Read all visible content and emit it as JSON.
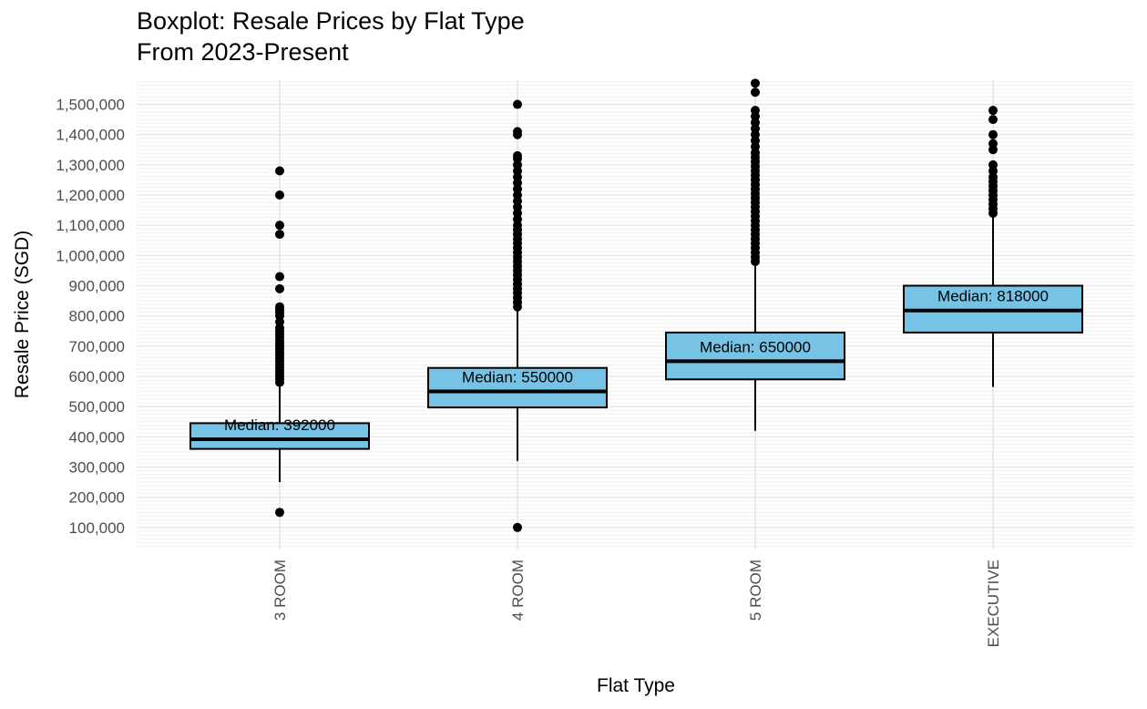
{
  "chart_data": {
    "type": "box",
    "title": "Boxplot: Resale Prices by Flat Type",
    "subtitle": "From 2023-Present",
    "xlabel": "Flat Type",
    "ylabel": "Resale Price (SGD)",
    "ylim": [
      30000,
      1580000
    ],
    "grid": "on",
    "box_fill": "#77C3E6",
    "yticks": [
      {
        "value": 100000,
        "label": "100,000"
      },
      {
        "value": 200000,
        "label": "200,000"
      },
      {
        "value": 300000,
        "label": "300,000"
      },
      {
        "value": 400000,
        "label": "400,000"
      },
      {
        "value": 500000,
        "label": "500,000"
      },
      {
        "value": 600000,
        "label": "600,000"
      },
      {
        "value": 700000,
        "label": "700,000"
      },
      {
        "value": 800000,
        "label": "800,000"
      },
      {
        "value": 900000,
        "label": "900,000"
      },
      {
        "value": 1000000,
        "label": "1,000,000"
      },
      {
        "value": 1100000,
        "label": "1,100,000"
      },
      {
        "value": 1200000,
        "label": "1,200,000"
      },
      {
        "value": 1300000,
        "label": "1,300,000"
      },
      {
        "value": 1400000,
        "label": "1,400,000"
      },
      {
        "value": 1500000,
        "label": "1,500,000"
      }
    ],
    "categories": [
      "3 ROOM",
      "4 ROOM",
      "5 ROOM",
      "EXECUTIVE"
    ],
    "boxes": [
      {
        "category": "3 ROOM",
        "q1": 360000,
        "median": 392000,
        "q3": 445000,
        "whisker_low": 250000,
        "whisker_high": 570000,
        "median_label": "Median: 392000",
        "outliers": [
          150000,
          580000,
          590000,
          600000,
          610000,
          620000,
          630000,
          640000,
          650000,
          660000,
          670000,
          680000,
          690000,
          700000,
          710000,
          720000,
          730000,
          740000,
          750000,
          760000,
          780000,
          800000,
          810000,
          820000,
          830000,
          890000,
          930000,
          1070000,
          1100000,
          1200000,
          1280000
        ]
      },
      {
        "category": "4 ROOM",
        "q1": 497000,
        "median": 550000,
        "q3": 628000,
        "whisker_low": 320000,
        "whisker_high": 820000,
        "median_label": "Median: 550000",
        "outliers": [
          100000,
          830000,
          845000,
          860000,
          875000,
          890000,
          905000,
          920000,
          935000,
          950000,
          965000,
          980000,
          995000,
          1010000,
          1025000,
          1040000,
          1055000,
          1070000,
          1085000,
          1100000,
          1120000,
          1140000,
          1160000,
          1180000,
          1200000,
          1220000,
          1240000,
          1260000,
          1280000,
          1300000,
          1320000,
          1330000,
          1400000,
          1410000,
          1500000
        ]
      },
      {
        "category": "5 ROOM",
        "q1": 590000,
        "median": 650000,
        "q3": 745000,
        "whisker_low": 420000,
        "whisker_high": 970000,
        "median_label": "Median: 650000",
        "outliers": [
          980000,
          995000,
          1010000,
          1025000,
          1040000,
          1055000,
          1070000,
          1085000,
          1100000,
          1115000,
          1130000,
          1145000,
          1160000,
          1175000,
          1190000,
          1205000,
          1220000,
          1235000,
          1250000,
          1265000,
          1280000,
          1295000,
          1310000,
          1325000,
          1340000,
          1360000,
          1380000,
          1400000,
          1420000,
          1440000,
          1460000,
          1480000,
          1540000,
          1570000
        ]
      },
      {
        "category": "EXECUTIVE",
        "q1": 745000,
        "median": 818000,
        "q3": 900000,
        "whisker_low": 565000,
        "whisker_high": 1130000,
        "median_label": "Median: 818000",
        "outliers": [
          1140000,
          1155000,
          1170000,
          1185000,
          1200000,
          1215000,
          1230000,
          1245000,
          1260000,
          1280000,
          1300000,
          1350000,
          1370000,
          1400000,
          1450000,
          1480000
        ]
      }
    ]
  }
}
